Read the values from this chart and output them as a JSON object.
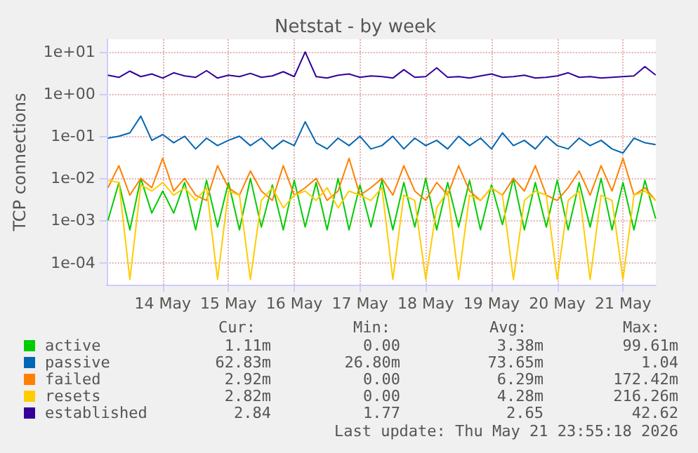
{
  "chart_data": {
    "type": "line",
    "title": "Netstat - by week",
    "ylabel": "TCP connections",
    "log": "y",
    "grid": true,
    "legend": "bottom",
    "marker": "none",
    "line_style": "solid",
    "x": [
      "2026-05-13T16:00",
      "2026-05-13T20:00",
      "2026-05-14T00:00",
      "2026-05-14T04:00",
      "2026-05-14T08:00",
      "2026-05-14T12:00",
      "2026-05-14T16:00",
      "2026-05-14T20:00",
      "2026-05-15T00:00",
      "2026-05-15T04:00",
      "2026-05-15T08:00",
      "2026-05-15T12:00",
      "2026-05-15T16:00",
      "2026-05-15T20:00",
      "2026-05-16T00:00",
      "2026-05-16T04:00",
      "2026-05-16T08:00",
      "2026-05-16T12:00",
      "2026-05-16T16:00",
      "2026-05-16T20:00",
      "2026-05-17T00:00",
      "2026-05-17T04:00",
      "2026-05-17T08:00",
      "2026-05-17T12:00",
      "2026-05-17T16:00",
      "2026-05-17T20:00",
      "2026-05-18T00:00",
      "2026-05-18T04:00",
      "2026-05-18T08:00",
      "2026-05-18T12:00",
      "2026-05-18T16:00",
      "2026-05-18T20:00",
      "2026-05-19T00:00",
      "2026-05-19T04:00",
      "2026-05-19T08:00",
      "2026-05-19T12:00",
      "2026-05-19T16:00",
      "2026-05-19T20:00",
      "2026-05-20T00:00",
      "2026-05-20T04:00",
      "2026-05-20T08:00",
      "2026-05-20T12:00",
      "2026-05-20T16:00",
      "2026-05-20T20:00",
      "2026-05-21T00:00",
      "2026-05-21T04:00",
      "2026-05-21T08:00",
      "2026-05-21T12:00",
      "2026-05-21T16:00",
      "2026-05-21T20:00",
      "2026-05-21T23:55"
    ],
    "xlim": [
      "2026-05-13T15:30",
      "2026-05-22T00:00"
    ],
    "xticks": [
      {
        "value": "2026-05-14T12:00",
        "label": "14 May"
      },
      {
        "value": "2026-05-15T12:00",
        "label": "15 May"
      },
      {
        "value": "2026-05-16T12:00",
        "label": "16 May"
      },
      {
        "value": "2026-05-17T12:00",
        "label": "17 May"
      },
      {
        "value": "2026-05-18T12:00",
        "label": "18 May"
      },
      {
        "value": "2026-05-19T12:00",
        "label": "19 May"
      },
      {
        "value": "2026-05-20T12:00",
        "label": "20 May"
      },
      {
        "value": "2026-05-21T12:00",
        "label": "21 May"
      }
    ],
    "ylim": [
      3e-05,
      20
    ],
    "yticks": [
      {
        "value": 0.0001,
        "label": "1e-04"
      },
      {
        "value": 0.001,
        "label": "1e-03"
      },
      {
        "value": 0.01,
        "label": "1e-02"
      },
      {
        "value": 0.1,
        "label": "1e-01"
      },
      {
        "value": 1,
        "label": "1e+00"
      },
      {
        "value": 10,
        "label": "1e+01"
      }
    ],
    "series": [
      {
        "name": "active",
        "color": "#00cc00",
        "values": [
          0.001,
          0.008,
          0.0006,
          0.01,
          0.0015,
          0.005,
          0.0015,
          0.008,
          0.0006,
          0.009,
          0.0007,
          0.008,
          0.0006,
          0.01,
          0.0007,
          0.007,
          0.0006,
          0.009,
          0.0007,
          0.008,
          0.0006,
          0.01,
          0.0006,
          0.007,
          0.0007,
          0.009,
          0.0006,
          0.008,
          0.0007,
          0.01,
          0.0006,
          0.008,
          0.0007,
          0.009,
          0.0006,
          0.007,
          0.0008,
          0.01,
          0.0006,
          0.008,
          0.0007,
          0.009,
          0.0006,
          0.008,
          0.0007,
          0.01,
          0.0006,
          0.008,
          0.0006,
          0.009,
          0.00111
        ]
      },
      {
        "name": "passive",
        "color": "#0066b3",
        "values": [
          0.09,
          0.1,
          0.12,
          0.3,
          0.08,
          0.11,
          0.07,
          0.1,
          0.05,
          0.09,
          0.06,
          0.08,
          0.1,
          0.06,
          0.09,
          0.05,
          0.08,
          0.06,
          0.22,
          0.07,
          0.05,
          0.09,
          0.06,
          0.1,
          0.05,
          0.06,
          0.1,
          0.05,
          0.09,
          0.06,
          0.08,
          0.05,
          0.1,
          0.06,
          0.09,
          0.05,
          0.12,
          0.06,
          0.08,
          0.05,
          0.1,
          0.06,
          0.05,
          0.09,
          0.06,
          0.08,
          0.05,
          0.04,
          0.09,
          0.07,
          0.063
        ]
      },
      {
        "name": "failed",
        "color": "#ff8000",
        "values": [
          0.006,
          0.02,
          0.004,
          0.01,
          0.006,
          0.03,
          0.005,
          0.01,
          0.004,
          0.003,
          0.02,
          0.006,
          0.004,
          0.015,
          0.005,
          0.003,
          0.02,
          0.004,
          0.006,
          0.01,
          0.003,
          0.005,
          0.03,
          0.004,
          0.006,
          0.01,
          0.004,
          0.02,
          0.005,
          0.003,
          0.008,
          0.004,
          0.02,
          0.005,
          0.003,
          0.006,
          0.004,
          0.01,
          0.005,
          0.02,
          0.004,
          0.003,
          0.006,
          0.015,
          0.004,
          0.02,
          0.005,
          0.03,
          0.004,
          0.006,
          0.003
        ]
      },
      {
        "name": "resets",
        "color": "#ffcc00",
        "values": [
          0.009,
          0.008,
          4e-05,
          0.007,
          0.005,
          0.008,
          0.004,
          0.006,
          0.003,
          0.006,
          4e-05,
          0.005,
          0.004,
          4e-05,
          0.003,
          0.006,
          0.002,
          0.004,
          0.005,
          0.003,
          0.006,
          0.002,
          0.005,
          0.004,
          0.003,
          0.006,
          4e-05,
          0.004,
          0.003,
          4e-05,
          0.002,
          0.005,
          4e-05,
          0.004,
          0.003,
          0.006,
          0.004,
          4e-05,
          0.003,
          0.005,
          0.004,
          4e-05,
          0.003,
          0.005,
          4e-05,
          0.004,
          0.003,
          4e-05,
          0.004,
          0.005,
          0.003
        ]
      },
      {
        "name": "established",
        "color": "#330099",
        "values": [
          2.8,
          2.5,
          3.5,
          2.6,
          3.0,
          2.4,
          3.2,
          2.7,
          2.5,
          3.6,
          2.4,
          2.8,
          2.6,
          3.1,
          2.5,
          2.7,
          3.4,
          2.6,
          10,
          2.6,
          2.4,
          2.8,
          3.0,
          2.5,
          2.7,
          2.6,
          2.4,
          3.8,
          2.5,
          2.6,
          4.2,
          2.5,
          2.6,
          2.4,
          2.7,
          3.0,
          2.5,
          2.6,
          2.8,
          2.4,
          2.5,
          2.7,
          3.2,
          2.5,
          2.6,
          2.4,
          2.5,
          2.6,
          2.7,
          4.5,
          2.84
        ]
      }
    ],
    "annotations": [
      "Cur:",
      "Min:",
      "Avg:",
      "Max:",
      "1.11m",
      "0.00",
      "3.38m",
      "99.61m",
      "62.83m",
      "26.80m",
      "73.65m",
      "1.04",
      "2.92m",
      "0.00",
      "6.29m",
      "172.42m",
      "2.82m",
      "0.00",
      "4.28m",
      "216.26m",
      "2.84",
      "1.77",
      "2.65",
      "42.62",
      "Last update: Thu May 21 23:55:18 2026"
    ]
  }
}
